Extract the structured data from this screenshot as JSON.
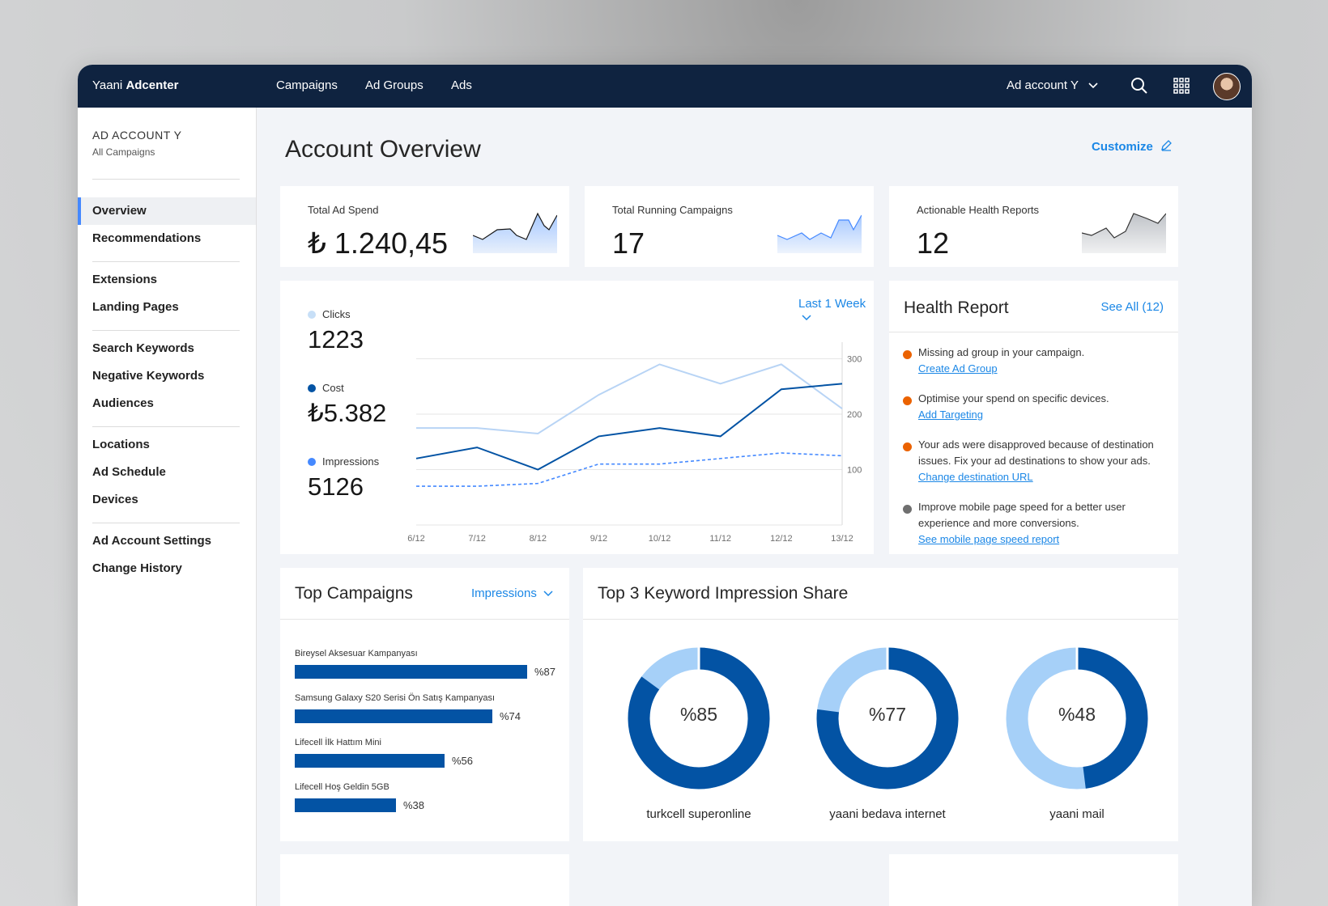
{
  "topnav": {
    "brand_light": "Yaani",
    "brand_bold": "Adcenter",
    "links": [
      "Campaigns",
      "Ad Groups",
      "Ads"
    ],
    "account_selector": "Ad account Y",
    "icons": [
      "search-icon",
      "apps-grid-icon",
      "user-avatar"
    ]
  },
  "sidebar": {
    "account": "AD ACCOUNT Y",
    "subtitle": "All Campaigns",
    "items": [
      "Overview",
      "Recommendations",
      "Extensions",
      "Landing Pages",
      "Search Keywords",
      "Negative Keywords",
      "Audiences",
      "Locations",
      "Ad Schedule",
      "Devices",
      "Ad Account Settings",
      "Change History"
    ],
    "active": "Overview"
  },
  "main": {
    "title": "Account Overview",
    "customize": "Customize"
  },
  "kpis": [
    {
      "label": "Total Ad Spend",
      "value": "₺ 1.240,45"
    },
    {
      "label": "Total Running Campaigns",
      "value": "17"
    },
    {
      "label": "Actionable Health Reports",
      "value": "12"
    }
  ],
  "performance": {
    "range": "Last 1 Week",
    "legend": [
      {
        "label": "Clicks",
        "value": "1223",
        "color": "#a6c8ff"
      },
      {
        "label": "Cost",
        "value": "₺5.382",
        "color": "#0353a4"
      },
      {
        "label": "Impressions",
        "value": "5126",
        "color": "#4589ff"
      }
    ]
  },
  "chart_data": {
    "type": "line",
    "x": [
      "6/12",
      "7/12",
      "8/12",
      "9/12",
      "10/12",
      "11/12",
      "12/12",
      "13/12"
    ],
    "yticks": [
      "300",
      "200",
      "100"
    ],
    "ylim": [
      0,
      330
    ],
    "series": [
      {
        "name": "Clicks",
        "values": [
          175,
          175,
          165,
          235,
          290,
          255,
          290,
          210
        ],
        "style": "solid",
        "color": "#b8d4f5"
      },
      {
        "name": "Cost",
        "values": [
          120,
          140,
          100,
          160,
          175,
          160,
          245,
          255
        ],
        "style": "solid",
        "color": "#0353a4"
      },
      {
        "name": "Impressions",
        "values": [
          70,
          70,
          75,
          110,
          110,
          120,
          130,
          125
        ],
        "style": "dashed",
        "color": "#4589ff"
      }
    ]
  },
  "health": {
    "title": "Health Report",
    "see_all": "See All (12)",
    "items": [
      {
        "text": "Missing ad group in your campaign.",
        "link": "Create Ad Group",
        "color": "#eb6200"
      },
      {
        "text": "Optimise your spend on specific devices.",
        "link": "Add Targeting",
        "color": "#eb6200"
      },
      {
        "text": "Your ads were disapproved because of destination issues. Fix your ad destinations to show your ads.",
        "link": "Change destination URL",
        "color": "#eb6200"
      },
      {
        "text": "Improve mobile page speed for a better user experience and more conversions.",
        "link": "See mobile page speed report",
        "color": "#6f6f6f"
      }
    ]
  },
  "top_campaigns": {
    "title": "Top Campaigns",
    "metric": "Impressions",
    "items": [
      {
        "name": "Bireysel Aksesuar Kampanyası",
        "value": 87,
        "label": "%87"
      },
      {
        "name": "Samsung Galaxy S20 Serisi Ön Satış Kampanyası",
        "value": 74,
        "label": "%74"
      },
      {
        "name": "Lifecell İlk Hattım Mini",
        "value": 56,
        "label": "%56"
      },
      {
        "name": "Lifecell Hoş Geldin 5GB",
        "value": 38,
        "label": "%38"
      }
    ]
  },
  "keyword_share": {
    "title": "Top 3 Keyword Impression Share",
    "items": [
      {
        "keyword": "turkcell superonline",
        "value": 85,
        "label": "%85"
      },
      {
        "keyword": "yaani bedava internet",
        "value": 77,
        "label": "%77"
      },
      {
        "keyword": "yaani mail",
        "value": 48,
        "label": "%48"
      }
    ],
    "colors": {
      "share": "#0353a4",
      "rest": "#a6d0f8"
    }
  }
}
